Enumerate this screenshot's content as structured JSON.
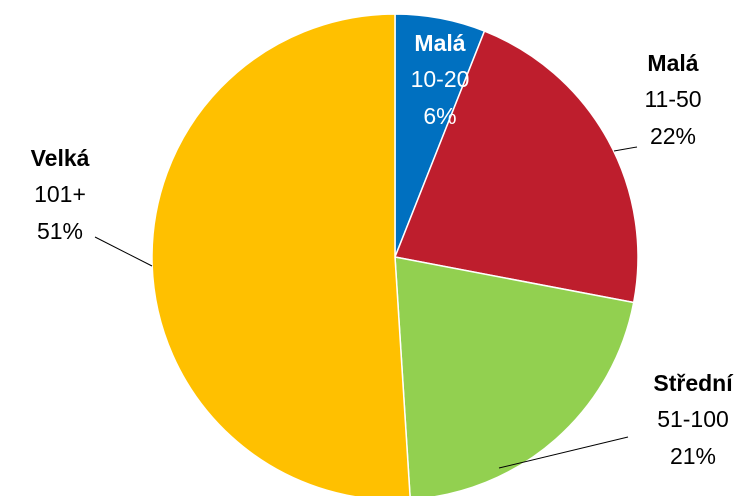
{
  "chart_data": {
    "type": "pie",
    "categories": [
      "Malá",
      "Malá",
      "Střední",
      "Velká"
    ],
    "ranges": [
      "10-20",
      "11-50",
      "51-100",
      "101+"
    ],
    "values": [
      6,
      22,
      21,
      51
    ],
    "value_labels": [
      "6%",
      "22%",
      "21%",
      "51%"
    ],
    "colors": [
      "#0070c0",
      "#be1e2d",
      "#92d050",
      "#ffc000"
    ]
  }
}
